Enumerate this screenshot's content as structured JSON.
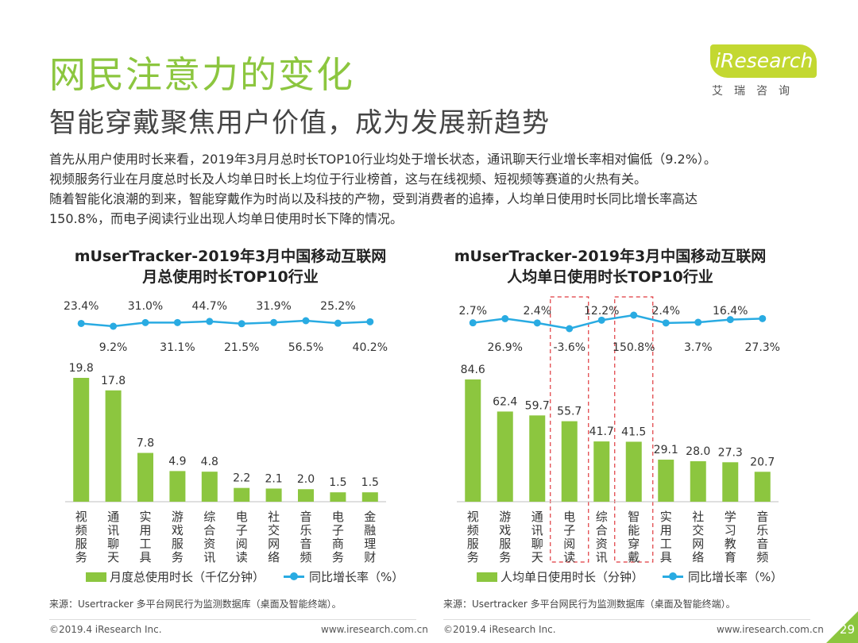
{
  "title": "网民注意力的变化",
  "subtitle": "智能穿戴聚焦用户价值，成为发展新趋势",
  "intro": [
    "首先从用户使用时长来看，2019年3月月总时长TOP10行业均处于增长状态，通讯聊天行业增长率相对偏低（9.2%）。",
    "视频服务行业在月度总时长及人均单日时长上均位于行业榜首，这与在线视频、短视频等赛道的火热有关。",
    "随着智能化浪潮的到来，智能穿戴作为时尚以及科技的产物，受到消费者的追捧，人均单日使用时长同比增长率高达",
    "150.8%，而电子阅读行业出现人均单日使用时长下降的情况。"
  ],
  "logo": {
    "text": "iResearch",
    "sub": "艾瑞咨询"
  },
  "colors": {
    "accent": "#8cc63f",
    "bar": "#8cc63f",
    "line": "#29abe2",
    "highlight": "#e0393e"
  },
  "chart_data": [
    {
      "type": "bar",
      "title_lines": [
        "mUserTracker-2019年3月中国移动互联网",
        "月总使用时长TOP10行业"
      ],
      "categories": [
        "视频服务",
        "通讯聊天",
        "实用工具",
        "游戏服务",
        "综合资讯",
        "电子阅读",
        "社交网络",
        "音乐音频",
        "电子商务",
        "金融理财"
      ],
      "series": [
        {
          "name": "月度总使用时长（千亿分钟）",
          "type": "bar",
          "values": [
            19.8,
            17.8,
            7.8,
            4.9,
            4.8,
            2.2,
            2.1,
            2.0,
            1.5,
            1.5
          ]
        },
        {
          "name": "同比增长率（%）",
          "type": "line",
          "values": [
            23.4,
            9.2,
            31.0,
            31.1,
            44.7,
            21.5,
            31.9,
            56.5,
            25.2,
            40.2
          ]
        }
      ],
      "bar_labels": [
        "19.8",
        "17.8",
        "7.8",
        "4.9",
        "4.8",
        "2.2",
        "2.1",
        "2.0",
        "1.5",
        "1.5"
      ],
      "line_labels": [
        "23.4%",
        "9.2%",
        "31.0%",
        "31.1%",
        "44.7%",
        "21.5%",
        "31.9%",
        "56.5%",
        "25.2%",
        "40.2%"
      ],
      "line_label_pos": [
        "above",
        "below",
        "above",
        "below",
        "above",
        "below",
        "above",
        "below",
        "above",
        "below"
      ],
      "highlight": [],
      "legend": [
        "月度总使用时长（千亿分钟）",
        "同比增长率（%）"
      ],
      "source": "来源：Usertracker 多平台网民行为监测数据库（桌面及智能终端）。"
    },
    {
      "type": "bar",
      "title_lines": [
        "mUserTracker-2019年3月中国移动互联网",
        "人均单日使用时长TOP10行业"
      ],
      "categories": [
        "视频服务",
        "游戏服务",
        "通讯聊天",
        "电子阅读",
        "综合资讯",
        "智能穿戴",
        "实用工具",
        "社交网络",
        "学习教育",
        "音乐音频"
      ],
      "series": [
        {
          "name": "人均单日使用时长（分钟）",
          "type": "bar",
          "values": [
            84.6,
            62.4,
            59.7,
            55.7,
            41.7,
            41.5,
            29.1,
            28.0,
            27.3,
            20.7
          ]
        },
        {
          "name": "同比增长率（%）",
          "type": "line",
          "values": [
            2.7,
            26.9,
            2.4,
            -3.6,
            12.2,
            150.8,
            2.4,
            3.7,
            16.4,
            27.3
          ]
        }
      ],
      "bar_labels": [
        "84.6",
        "62.4",
        "59.7",
        "55.7",
        "41.7",
        "41.5",
        "29.1",
        "28.0",
        "27.3",
        "20.7"
      ],
      "line_labels": [
        "2.7%",
        "26.9%",
        "2.4%",
        "-3.6%",
        "12.2%",
        "150.8%",
        "2.4%",
        "3.7%",
        "16.4%",
        "27.3%"
      ],
      "line_label_pos": [
        "above",
        "below",
        "above",
        "below",
        "above",
        "below",
        "above",
        "below",
        "above",
        "below"
      ],
      "highlight": [
        3,
        5
      ],
      "legend": [
        "人均单日使用时长（分钟）",
        "同比增长率（%）"
      ],
      "source": "来源：Usertracker 多平台网民行为监测数据库（桌面及智能终端）。"
    }
  ],
  "footer": {
    "copyright": "©2019.4 iResearch Inc.",
    "url": "www.iresearch.com.cn",
    "page": "29"
  }
}
